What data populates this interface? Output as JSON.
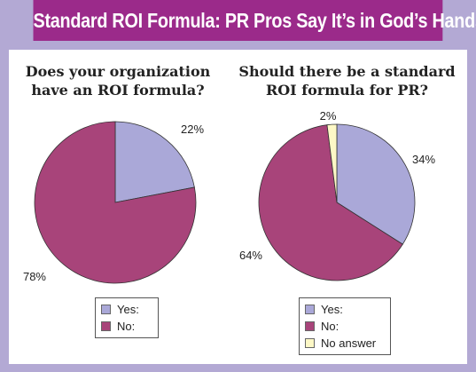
{
  "title": "Standard ROI Formula: PR Pros Say It’s in God’s Hands",
  "colors": {
    "banner": "#9b2a8a",
    "background": "#b3a9d4",
    "yes": "#aaa8d8",
    "no": "#a8447a",
    "no_answer": "#fdf8c6"
  },
  "chart_data": [
    {
      "type": "pie",
      "title": "Does your organization have an ROI formula?",
      "slices": [
        {
          "label": "Yes:",
          "value": 22,
          "display": "22%"
        },
        {
          "label": "No:",
          "value": 78,
          "display": "78%"
        }
      ],
      "legend": [
        "Yes:",
        "No:"
      ],
      "legend_position": "bottom"
    },
    {
      "type": "pie",
      "title": "Should there be a standard ROI formula for PR?",
      "slices": [
        {
          "label": "Yes:",
          "value": 34,
          "display": "34%"
        },
        {
          "label": "No:",
          "value": 64,
          "display": "64%"
        },
        {
          "label": "No answer",
          "value": 2,
          "display": "2%"
        }
      ],
      "legend": [
        "Yes:",
        "No:",
        "No answer"
      ],
      "legend_position": "bottom"
    }
  ]
}
